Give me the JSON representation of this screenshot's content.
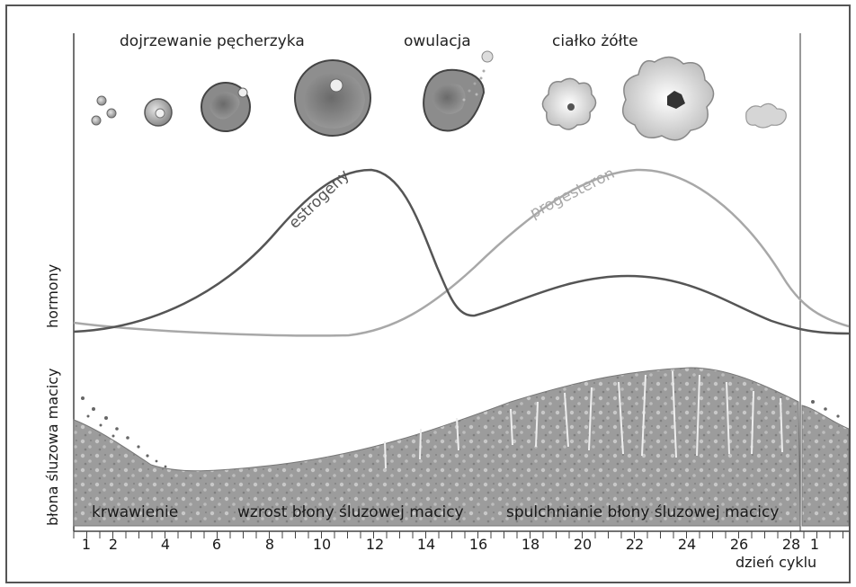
{
  "stage_labels": {
    "maturation": "dojrzewanie pęcherzyka",
    "ovulation": "owulacja",
    "corpus_luteum": "ciałko żółte"
  },
  "axis_labels": {
    "hormones": "hormony",
    "endometrium": "błona śluzowa macicy",
    "x_axis": "dzień cyklu"
  },
  "curve_labels": {
    "estrogen": "estrogeny",
    "progesterone": "progesteron"
  },
  "phase_labels": {
    "bleeding": "krwawienie",
    "growth": "wzrost błony śluzowej macicy",
    "loosening": "spulchnianie błony śluzowej macicy"
  },
  "day_ticks": [
    "1",
    "2",
    "4",
    "6",
    "8",
    "10",
    "12",
    "14",
    "16",
    "18",
    "20",
    "22",
    "24",
    "26",
    "28",
    "1"
  ],
  "colors": {
    "estrogen": "#555555",
    "progesterone": "#a8a8a8",
    "endometrium": "#9a9a9a",
    "axis": "#444444"
  }
}
